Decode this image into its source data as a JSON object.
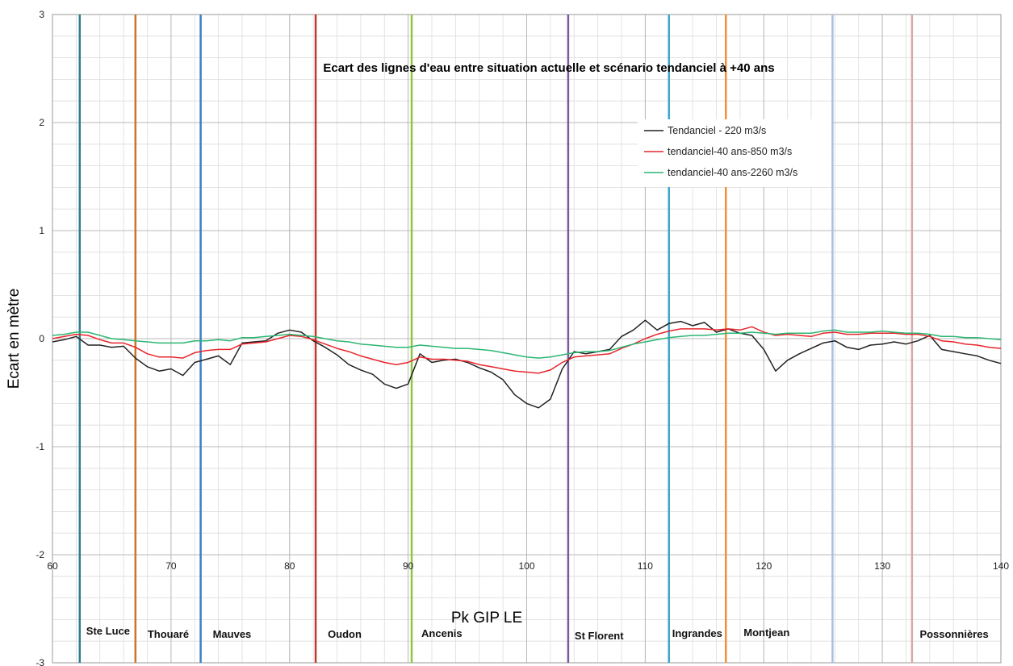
{
  "chart_data": {
    "type": "line",
    "title": "Ecart des lignes d'eau entre situation actuelle et  scénario tendanciel  à +40 ans",
    "xlabel": "Pk GIP LE",
    "ylabel": "Ecart en mètre",
    "xlim": [
      60,
      140
    ],
    "ylim": [
      -3,
      3
    ],
    "xticks": [
      60,
      70,
      80,
      90,
      100,
      110,
      120,
      130,
      140
    ],
    "yticks": [
      3,
      2,
      1,
      0,
      -1,
      -2,
      -3
    ],
    "grid": true,
    "legend_position": "top-right",
    "series": [
      {
        "name": "Tendanciel - 220 m3/s",
        "color": "#222222",
        "points": [
          [
            60,
            -0.03
          ],
          [
            61,
            -0.01
          ],
          [
            62,
            0.02
          ],
          [
            63,
            -0.06
          ],
          [
            64,
            -0.06
          ],
          [
            65,
            -0.08
          ],
          [
            66,
            -0.07
          ],
          [
            67,
            -0.18
          ],
          [
            68,
            -0.26
          ],
          [
            69,
            -0.3
          ],
          [
            70,
            -0.28
          ],
          [
            71,
            -0.34
          ],
          [
            72,
            -0.22
          ],
          [
            73,
            -0.19
          ],
          [
            74,
            -0.16
          ],
          [
            75,
            -0.24
          ],
          [
            76,
            -0.04
          ],
          [
            77,
            -0.03
          ],
          [
            78,
            -0.02
          ],
          [
            79,
            0.05
          ],
          [
            80,
            0.08
          ],
          [
            81,
            0.06
          ],
          [
            82,
            -0.02
          ],
          [
            83,
            -0.08
          ],
          [
            84,
            -0.15
          ],
          [
            85,
            -0.24
          ],
          [
            86,
            -0.29
          ],
          [
            87,
            -0.33
          ],
          [
            88,
            -0.42
          ],
          [
            89,
            -0.46
          ],
          [
            90,
            -0.42
          ],
          [
            91,
            -0.14
          ],
          [
            92,
            -0.22
          ],
          [
            93,
            -0.2
          ],
          [
            94,
            -0.19
          ],
          [
            95,
            -0.22
          ],
          [
            96,
            -0.27
          ],
          [
            97,
            -0.31
          ],
          [
            98,
            -0.38
          ],
          [
            99,
            -0.52
          ],
          [
            100,
            -0.6
          ],
          [
            101,
            -0.64
          ],
          [
            102,
            -0.56
          ],
          [
            103,
            -0.28
          ],
          [
            104,
            -0.12
          ],
          [
            105,
            -0.14
          ],
          [
            106,
            -0.12
          ],
          [
            107,
            -0.1
          ],
          [
            108,
            0.02
          ],
          [
            109,
            0.08
          ],
          [
            110,
            0.17
          ],
          [
            111,
            0.08
          ],
          [
            112,
            0.14
          ],
          [
            113,
            0.16
          ],
          [
            114,
            0.12
          ],
          [
            115,
            0.15
          ],
          [
            116,
            0.06
          ],
          [
            117,
            0.09
          ],
          [
            118,
            0.05
          ],
          [
            119,
            0.03
          ],
          [
            120,
            -0.1
          ],
          [
            121,
            -0.3
          ],
          [
            122,
            -0.2
          ],
          [
            123,
            -0.14
          ],
          [
            124,
            -0.09
          ],
          [
            125,
            -0.04
          ],
          [
            126,
            -0.02
          ],
          [
            127,
            -0.08
          ],
          [
            128,
            -0.1
          ],
          [
            129,
            -0.06
          ],
          [
            130,
            -0.05
          ],
          [
            131,
            -0.03
          ],
          [
            132,
            -0.05
          ],
          [
            133,
            -0.02
          ],
          [
            134,
            0.03
          ],
          [
            135,
            -0.1
          ],
          [
            136,
            -0.12
          ],
          [
            137,
            -0.14
          ],
          [
            138,
            -0.16
          ],
          [
            139,
            -0.2
          ],
          [
            140,
            -0.23
          ]
        ]
      },
      {
        "name": "tendanciel-40 ans-850 m3/s",
        "color": "#e8252b",
        "points": [
          [
            60,
            0.0
          ],
          [
            61,
            0.02
          ],
          [
            62,
            0.04
          ],
          [
            63,
            0.03
          ],
          [
            64,
            -0.01
          ],
          [
            65,
            -0.04
          ],
          [
            66,
            -0.04
          ],
          [
            67,
            -0.08
          ],
          [
            68,
            -0.14
          ],
          [
            69,
            -0.17
          ],
          [
            70,
            -0.17
          ],
          [
            71,
            -0.18
          ],
          [
            72,
            -0.13
          ],
          [
            73,
            -0.11
          ],
          [
            74,
            -0.1
          ],
          [
            75,
            -0.1
          ],
          [
            76,
            -0.05
          ],
          [
            77,
            -0.04
          ],
          [
            78,
            -0.03
          ],
          [
            79,
            0.0
          ],
          [
            80,
            0.03
          ],
          [
            81,
            0.02
          ],
          [
            82,
            -0.01
          ],
          [
            83,
            -0.05
          ],
          [
            84,
            -0.09
          ],
          [
            85,
            -0.12
          ],
          [
            86,
            -0.16
          ],
          [
            87,
            -0.19
          ],
          [
            88,
            -0.22
          ],
          [
            89,
            -0.24
          ],
          [
            90,
            -0.22
          ],
          [
            91,
            -0.17
          ],
          [
            92,
            -0.19
          ],
          [
            93,
            -0.19
          ],
          [
            94,
            -0.2
          ],
          [
            95,
            -0.21
          ],
          [
            96,
            -0.24
          ],
          [
            97,
            -0.26
          ],
          [
            98,
            -0.28
          ],
          [
            99,
            -0.3
          ],
          [
            100,
            -0.31
          ],
          [
            101,
            -0.32
          ],
          [
            102,
            -0.29
          ],
          [
            103,
            -0.22
          ],
          [
            104,
            -0.17
          ],
          [
            105,
            -0.16
          ],
          [
            106,
            -0.15
          ],
          [
            107,
            -0.14
          ],
          [
            108,
            -0.09
          ],
          [
            109,
            -0.05
          ],
          [
            110,
            0.0
          ],
          [
            111,
            0.04
          ],
          [
            112,
            0.07
          ],
          [
            113,
            0.09
          ],
          [
            114,
            0.09
          ],
          [
            115,
            0.09
          ],
          [
            116,
            0.08
          ],
          [
            117,
            0.09
          ],
          [
            118,
            0.08
          ],
          [
            119,
            0.11
          ],
          [
            120,
            0.06
          ],
          [
            121,
            0.03
          ],
          [
            122,
            0.04
          ],
          [
            123,
            0.03
          ],
          [
            124,
            0.02
          ],
          [
            125,
            0.05
          ],
          [
            126,
            0.06
          ],
          [
            127,
            0.04
          ],
          [
            128,
            0.04
          ],
          [
            129,
            0.05
          ],
          [
            130,
            0.05
          ],
          [
            131,
            0.05
          ],
          [
            132,
            0.04
          ],
          [
            133,
            0.04
          ],
          [
            134,
            0.02
          ],
          [
            135,
            -0.02
          ],
          [
            136,
            -0.03
          ],
          [
            137,
            -0.05
          ],
          [
            138,
            -0.06
          ],
          [
            139,
            -0.08
          ],
          [
            140,
            -0.09
          ]
        ]
      },
      {
        "name": "tendanciel-40 ans-2260 m3/s",
        "color": "#2bb673",
        "points": [
          [
            60,
            0.03
          ],
          [
            61,
            0.04
          ],
          [
            62,
            0.06
          ],
          [
            63,
            0.06
          ],
          [
            64,
            0.03
          ],
          [
            65,
            0.0
          ],
          [
            66,
            -0.01
          ],
          [
            67,
            -0.02
          ],
          [
            68,
            -0.03
          ],
          [
            69,
            -0.04
          ],
          [
            70,
            -0.04
          ],
          [
            71,
            -0.04
          ],
          [
            72,
            -0.02
          ],
          [
            73,
            -0.02
          ],
          [
            74,
            -0.01
          ],
          [
            75,
            -0.02
          ],
          [
            76,
            0.01
          ],
          [
            77,
            0.01
          ],
          [
            78,
            0.02
          ],
          [
            79,
            0.03
          ],
          [
            80,
            0.04
          ],
          [
            81,
            0.03
          ],
          [
            82,
            0.02
          ],
          [
            83,
            0.0
          ],
          [
            84,
            -0.02
          ],
          [
            85,
            -0.03
          ],
          [
            86,
            -0.05
          ],
          [
            87,
            -0.06
          ],
          [
            88,
            -0.07
          ],
          [
            89,
            -0.08
          ],
          [
            90,
            -0.08
          ],
          [
            91,
            -0.06
          ],
          [
            92,
            -0.07
          ],
          [
            93,
            -0.08
          ],
          [
            94,
            -0.09
          ],
          [
            95,
            -0.09
          ],
          [
            96,
            -0.1
          ],
          [
            97,
            -0.11
          ],
          [
            98,
            -0.13
          ],
          [
            99,
            -0.15
          ],
          [
            100,
            -0.17
          ],
          [
            101,
            -0.18
          ],
          [
            102,
            -0.17
          ],
          [
            103,
            -0.15
          ],
          [
            104,
            -0.13
          ],
          [
            105,
            -0.12
          ],
          [
            106,
            -0.12
          ],
          [
            107,
            -0.11
          ],
          [
            108,
            -0.08
          ],
          [
            109,
            -0.05
          ],
          [
            110,
            -0.03
          ],
          [
            111,
            -0.01
          ],
          [
            112,
            0.01
          ],
          [
            113,
            0.02
          ],
          [
            114,
            0.03
          ],
          [
            115,
            0.03
          ],
          [
            116,
            0.04
          ],
          [
            117,
            0.05
          ],
          [
            118,
            0.05
          ],
          [
            119,
            0.06
          ],
          [
            120,
            0.05
          ],
          [
            121,
            0.04
          ],
          [
            122,
            0.05
          ],
          [
            123,
            0.05
          ],
          [
            124,
            0.05
          ],
          [
            125,
            0.07
          ],
          [
            126,
            0.08
          ],
          [
            127,
            0.06
          ],
          [
            128,
            0.06
          ],
          [
            129,
            0.06
          ],
          [
            130,
            0.07
          ],
          [
            131,
            0.06
          ],
          [
            132,
            0.05
          ],
          [
            133,
            0.05
          ],
          [
            134,
            0.04
          ],
          [
            135,
            0.02
          ],
          [
            136,
            0.02
          ],
          [
            137,
            0.01
          ],
          [
            138,
            0.01
          ],
          [
            139,
            0.0
          ],
          [
            140,
            -0.01
          ]
        ]
      }
    ],
    "markers": [
      {
        "pk": 62.3,
        "color": "#2e7d8e",
        "label": "Ste Luce"
      },
      {
        "pk": 67.0,
        "color": "#c8762c",
        "label": "Thouaré"
      },
      {
        "pk": 72.5,
        "color": "#3c7fc0",
        "label": "Mauves"
      },
      {
        "pk": 82.2,
        "color": "#c0392b",
        "label": "Oudon"
      },
      {
        "pk": 90.3,
        "color": "#8dc63f",
        "label": "Ancenis"
      },
      {
        "pk": 103.5,
        "color": "#7e5a9b",
        "label": "St Florent"
      },
      {
        "pk": 112.0,
        "color": "#3ba7c9",
        "label": "Ingrandes"
      },
      {
        "pk": 116.8,
        "color": "#f0913a",
        "label": "Montjean"
      },
      {
        "pk": 125.8,
        "color": "#a9c0e0",
        "label": "Possonnières"
      },
      {
        "pk": 132.5,
        "color": "#d9a8a8",
        "label": ""
      }
    ]
  }
}
